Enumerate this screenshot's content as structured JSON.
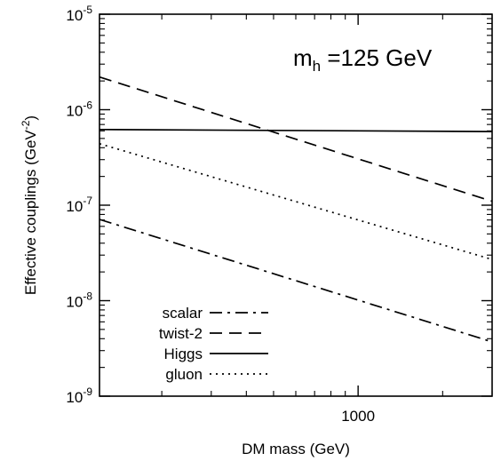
{
  "chart_data": {
    "type": "line",
    "title": "",
    "xlabel": "DM mass (GeV)",
    "ylabel": "Effective couplings (GeV",
    "ylabel_sup": "-2",
    "ylabel_end": ")",
    "xscale": "log",
    "yscale": "log",
    "xlim": [
      120,
      3000
    ],
    "ylim": [
      1e-09,
      1e-05
    ],
    "grid": false,
    "legend_position": "bottom-left",
    "x_ticks": [
      {
        "value": 1000,
        "label": "1000"
      }
    ],
    "y_ticks": [
      {
        "value": 1e-09,
        "base": "10",
        "exp": "-9"
      },
      {
        "value": 1e-08,
        "base": "10",
        "exp": "-8"
      },
      {
        "value": 1e-07,
        "base": "10",
        "exp": "-7"
      },
      {
        "value": 1e-06,
        "base": "10",
        "exp": "-6"
      },
      {
        "value": 1e-05,
        "base": "10",
        "exp": "-5"
      }
    ],
    "annotation": {
      "prefix": "m",
      "sub": "h",
      "suffix": " =125 GeV"
    },
    "series": [
      {
        "name": "scalar",
        "dash": "dashdot",
        "color": "#000000",
        "x": [
          120,
          3000
        ],
        "y": [
          7.1e-08,
          3.7e-09
        ]
      },
      {
        "name": "twist-2",
        "dash": "dashed",
        "color": "#000000",
        "x": [
          120,
          3000
        ],
        "y": [
          2.2e-06,
          1.1e-07
        ]
      },
      {
        "name": "Higgs",
        "dash": "solid",
        "color": "#000000",
        "x": [
          120,
          3000
        ],
        "y": [
          6.2e-07,
          5.9e-07
        ]
      },
      {
        "name": "gluon",
        "dash": "dotted",
        "color": "#000000",
        "x": [
          120,
          3000
        ],
        "y": [
          4.4e-07,
          2.7e-08
        ]
      }
    ]
  }
}
